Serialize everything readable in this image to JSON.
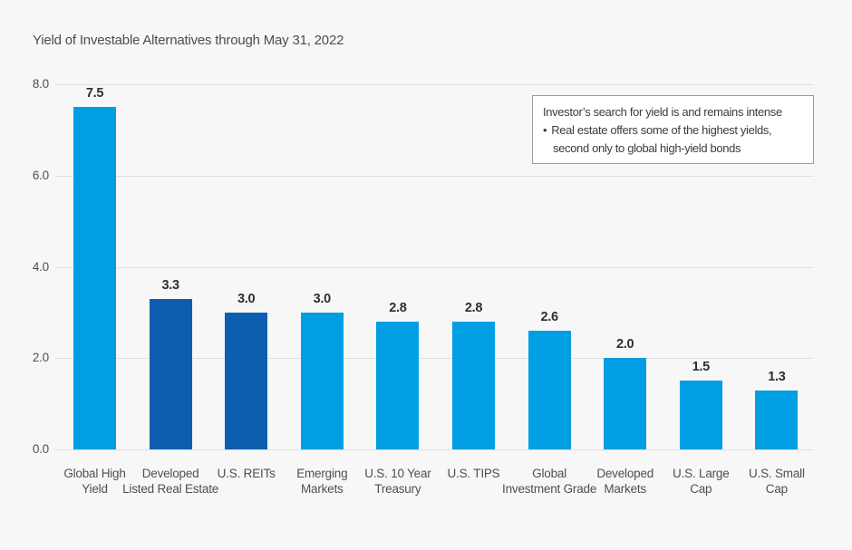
{
  "title": "Yield of Investable Alternatives through May 31, 2022",
  "annotation": {
    "line1": "Investor’s search for yield is and remains intense",
    "bullet": "•",
    "line2": "Real estate offers some of the highest yields,",
    "line3": "second only to global high-yield bonds"
  },
  "colors": {
    "background": "#f7f7f7",
    "light_blue": "#009ee2",
    "dark_blue": "#0d5eb0",
    "gridline": "#dfdfdf",
    "axis_text": "#4f4f4f",
    "value_label_text": "#2e2e2e",
    "annotation_border": "#9b9b9b",
    "annotation_background": "#ffffff"
  },
  "chart_data": {
    "type": "bar",
    "title": "Yield of Investable Alternatives through May 31, 2022",
    "categories": [
      "Global High Yield",
      "Developed Listed Real Estate",
      "U.S. REITs",
      "Emerging Markets",
      "U.S. 10 Year Treasury",
      "U.S. TIPS",
      "Global Investment Grade",
      "Developed Markets",
      "U.S. Large Cap",
      "U.S. Small Cap"
    ],
    "category_label_lines": [
      [
        "Global High",
        "Yield"
      ],
      [
        "Developed",
        "Listed Real Estate"
      ],
      [
        "U.S. REITs"
      ],
      [
        "Emerging",
        "Markets"
      ],
      [
        "U.S. 10 Year",
        "Treasury"
      ],
      [
        "U.S. TIPS"
      ],
      [
        "Global",
        "Investment Grade"
      ],
      [
        "Developed",
        "Markets"
      ],
      [
        "U.S. Large",
        "Cap"
      ],
      [
        "U.S. Small",
        "Cap"
      ]
    ],
    "values": [
      7.5,
      3.3,
      3.0,
      3.0,
      2.8,
      2.8,
      2.6,
      2.0,
      1.5,
      1.3
    ],
    "value_labels": [
      "7.5",
      "3.3",
      "3.0",
      "3.0",
      "2.8",
      "2.8",
      "2.6",
      "2.0",
      "1.5",
      "1.3"
    ],
    "bar_colors": [
      "#009ee2",
      "#0d5eb0",
      "#0d5eb0",
      "#009ee2",
      "#009ee2",
      "#009ee2",
      "#009ee2",
      "#009ee2",
      "#009ee2",
      "#009ee2"
    ],
    "xlabel": "",
    "ylabel": "",
    "ylim": [
      0,
      8
    ],
    "yticks": [
      0,
      2,
      4,
      6,
      8
    ],
    "ytick_labels": [
      "0.0",
      "2.0",
      "4.0",
      "6.0",
      "8.0"
    ],
    "grid": true,
    "legend_position": "none",
    "annotation_text": "Investor’s search for yield is and remains intense • Real estate offers some of the highest yields, second only to global high-yield bonds"
  }
}
